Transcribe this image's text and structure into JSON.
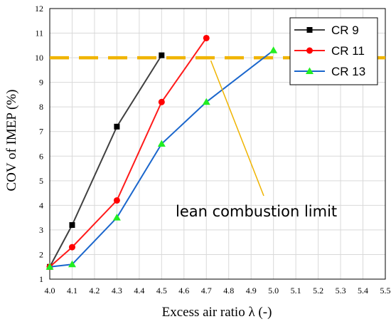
{
  "chart_data": {
    "type": "line",
    "title": "",
    "xlabel": "Excess air ratio λ (-)",
    "ylabel": "COV of IMEP (%)",
    "xlim": [
      4.0,
      5.5
    ],
    "ylim": [
      1,
      12
    ],
    "x_ticks": [
      "4.0",
      "4.1",
      "4.2",
      "4.3",
      "4.4",
      "4.5",
      "4.6",
      "4.7",
      "4.8",
      "4.9",
      "5.0",
      "5.1",
      "5.2",
      "5.3",
      "5.4",
      "5.5"
    ],
    "y_ticks": [
      "1",
      "2",
      "3",
      "4",
      "5",
      "6",
      "7",
      "8",
      "9",
      "10",
      "11",
      "12"
    ],
    "grid": true,
    "legend_position": "top-right",
    "series": [
      {
        "name": "CR 9",
        "color": "#404040",
        "marker": "square",
        "x": [
          4.0,
          4.1,
          4.3,
          4.5
        ],
        "y": [
          1.5,
          3.2,
          7.2,
          10.1
        ]
      },
      {
        "name": "CR 11",
        "color": "#ff1a1a",
        "marker": "circle",
        "x": [
          4.0,
          4.1,
          4.3,
          4.5,
          4.7
        ],
        "y": [
          1.5,
          2.3,
          4.2,
          8.2,
          10.8
        ]
      },
      {
        "name": "CR 13",
        "color": "#1a66cc",
        "marker": "triangle",
        "x": [
          4.0,
          4.1,
          4.3,
          4.5,
          4.7,
          5.0
        ],
        "y": [
          1.5,
          1.6,
          3.5,
          6.5,
          8.2,
          10.3
        ]
      }
    ],
    "reference_line": {
      "y": 10,
      "color": "#f0b400"
    },
    "annotation": {
      "text": "lean combustion limit",
      "point_x": 4.72,
      "point_y": 10,
      "color": "#f0b400"
    }
  }
}
